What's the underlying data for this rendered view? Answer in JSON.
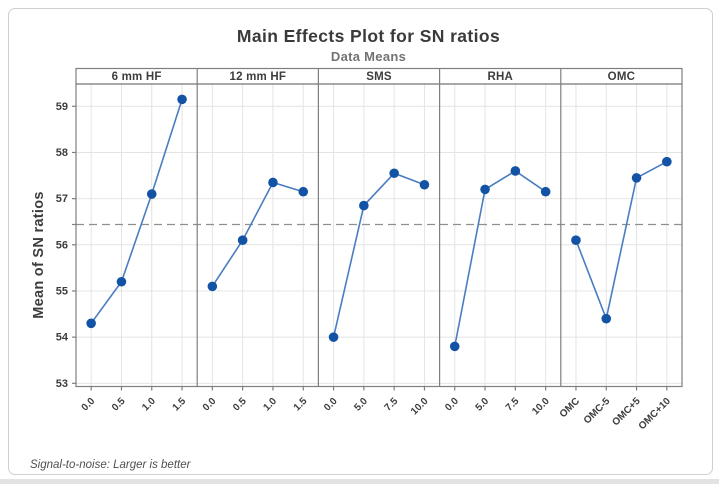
{
  "footer": {
    "note": "Signal-to-noise: Larger is better"
  },
  "chart_data": {
    "type": "line",
    "title": "Main Effects Plot for SN ratios",
    "subtitle": "Data Means",
    "ylabel": "Mean of SN ratios",
    "ylim": [
      53,
      59
    ],
    "yticks": [
      53,
      54,
      55,
      56,
      57,
      58,
      59
    ],
    "reference_line": 56.44,
    "grid": true,
    "legend": "none",
    "panels": [
      {
        "label": "6 mm HF",
        "categories": [
          "0.0",
          "0.5",
          "1.0",
          "1.5"
        ],
        "values": [
          54.3,
          55.2,
          57.1,
          59.15
        ]
      },
      {
        "label": "12 mm HF",
        "categories": [
          "0.0",
          "0.5",
          "1.0",
          "1.5"
        ],
        "values": [
          55.1,
          56.1,
          57.35,
          57.15
        ]
      },
      {
        "label": "SMS",
        "categories": [
          "0.0",
          "5.0",
          "7.5",
          "10.0"
        ],
        "values": [
          54.0,
          56.85,
          57.55,
          57.3
        ]
      },
      {
        "label": "RHA",
        "categories": [
          "0.0",
          "5.0",
          "7.5",
          "10.0"
        ],
        "values": [
          53.8,
          57.2,
          57.6,
          57.15
        ]
      },
      {
        "label": "OMC",
        "categories": [
          "OMC",
          "OMC-5",
          "OMC+5",
          "OMC+10"
        ],
        "values": [
          56.1,
          54.4,
          57.45,
          57.8
        ]
      }
    ],
    "colors": {
      "marker": "#1353a5",
      "line": "#4a7dc0",
      "reference": "#8f8f8f",
      "grid": "#e4e4e4",
      "frame": "#7f7f7f",
      "tick": "#7f7f7f"
    }
  }
}
